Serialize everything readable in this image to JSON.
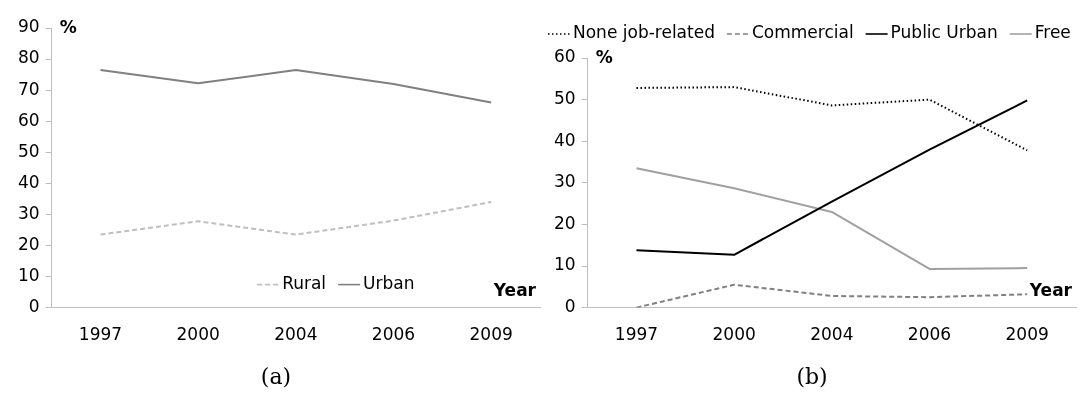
{
  "chart_data": [
    {
      "type": "line",
      "xlabel": "Year",
      "ylabel": "%",
      "categories": [
        "1997",
        "2000",
        "2004",
        "2006",
        "2009"
      ],
      "ylim": [
        0,
        90
      ],
      "yticks": [
        0,
        10,
        20,
        30,
        40,
        50,
        60,
        70,
        80,
        90
      ],
      "grid": false,
      "legend": "bottom",
      "marker": "none",
      "annotations": [
        "(a)"
      ],
      "series": [
        {
          "name": "Rural",
          "color": "#bfbfbf",
          "line_style": "dashed",
          "values": [
            23.5,
            27.8,
            23.5,
            28,
            34
          ]
        },
        {
          "name": "Urban",
          "color": "#808080",
          "line_style": "solid",
          "values": [
            76.5,
            72.2,
            76.5,
            72,
            66
          ]
        }
      ]
    },
    {
      "type": "line",
      "xlabel": "Year",
      "ylabel": "%",
      "categories": [
        "1997",
        "2000",
        "2004",
        "2006",
        "2009"
      ],
      "ylim": [
        0,
        60
      ],
      "yticks": [
        0,
        10,
        20,
        30,
        40,
        50,
        60
      ],
      "grid": false,
      "legend": "top",
      "marker": "none",
      "annotations": [
        "(b)"
      ],
      "series": [
        {
          "name": "None job-related",
          "color": "#000000",
          "line_style": "dotted",
          "values": [
            52.8,
            53,
            48.6,
            50,
            37.8
          ]
        },
        {
          "name": "Commercial",
          "color": "#808080",
          "line_style": "dashed",
          "values": [
            0,
            5.5,
            2.8,
            2.5,
            3.2
          ]
        },
        {
          "name": "Public Urban",
          "color": "#000000",
          "line_style": "solid",
          "values": [
            13.8,
            12.7,
            25.5,
            38,
            49.8
          ]
        },
        {
          "name": "Free",
          "color": "#a0a0a0",
          "line_style": "solid",
          "values": [
            33.5,
            28.7,
            23,
            9.3,
            9.5
          ]
        }
      ]
    }
  ]
}
